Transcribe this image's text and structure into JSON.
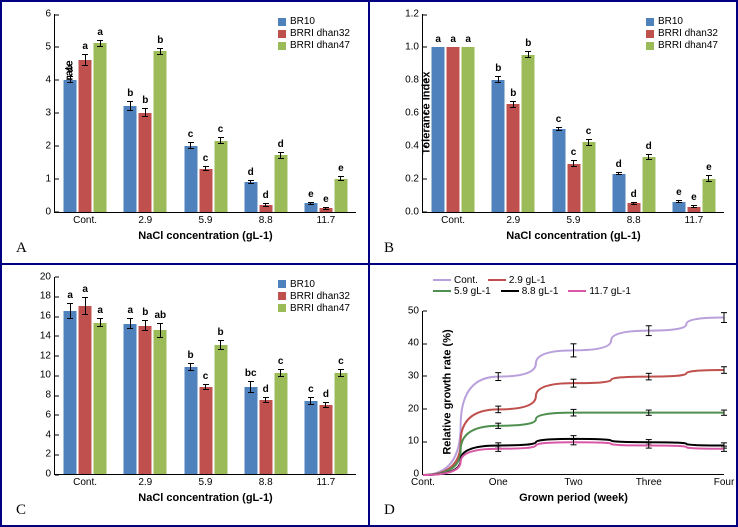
{
  "colors": {
    "BR10": "#4f81bd",
    "BRRI_dhan32": "#c0504d",
    "BRRI_dhan47": "#9bbb59",
    "axis": "#000000",
    "text": "#000000"
  },
  "line_colors": {
    "Cont": "#b9a0dc",
    "c29": "#c0504d",
    "c59": "#4f8f4f",
    "c88": "#000000",
    "c117": "#d858a6"
  },
  "series_labels": {
    "BR10": "BR10",
    "BRRI_dhan32": "BRRI dhan32",
    "BRRI_dhan47": "BRRI dhan47"
  },
  "x_categories": [
    "Cont.",
    "2.9",
    "5.9",
    "8.8",
    "11.7"
  ],
  "panelA": {
    "letter": "A",
    "ylabel": "Relative growth rate",
    "xlabel": "NaCl concentration (gL-1)",
    "ymin": 0.0,
    "ymax": 6.0,
    "ystep": 1.0,
    "data": {
      "BR10": [
        4.0,
        3.2,
        2.0,
        0.9,
        0.25
      ],
      "BRRI_dhan32": [
        4.6,
        3.0,
        1.3,
        0.2,
        0.1
      ],
      "BRRI_dhan47": [
        5.1,
        4.85,
        2.15,
        1.7,
        1.0
      ]
    },
    "err": {
      "BR10": [
        0.12,
        0.15,
        0.1,
        0.07,
        0.05
      ],
      "BRRI_dhan32": [
        0.18,
        0.13,
        0.07,
        0.05,
        0.04
      ],
      "BRRI_dhan47": [
        0.1,
        0.1,
        0.1,
        0.1,
        0.08
      ]
    },
    "sig": {
      "BR10": [
        "a",
        "b",
        "c",
        "d",
        "e"
      ],
      "BRRI_dhan32": [
        "a",
        "b",
        "c",
        "d",
        "e"
      ],
      "BRRI_dhan47": [
        "a",
        "b",
        "c",
        "d",
        "e"
      ]
    }
  },
  "panelB": {
    "letter": "B",
    "ylabel": "Tolerance Index",
    "xlabel": "NaCl concentration (gL-1)",
    "ymin": 0.0,
    "ymax": 1.2,
    "ystep": 0.2,
    "data": {
      "BR10": [
        1.0,
        0.8,
        0.5,
        0.23,
        0.06
      ],
      "BRRI_dhan32": [
        1.0,
        0.65,
        0.29,
        0.05,
        0.03
      ],
      "BRRI_dhan47": [
        1.0,
        0.95,
        0.42,
        0.33,
        0.2
      ]
    },
    "err": {
      "BR10": [
        0,
        0.02,
        0.01,
        0.01,
        0.01
      ],
      "BRRI_dhan32": [
        0,
        0.02,
        0.02,
        0.01,
        0.01
      ],
      "BRRI_dhan47": [
        0,
        0.02,
        0.02,
        0.02,
        0.02
      ]
    },
    "sig": {
      "BR10": [
        "a",
        "b",
        "c",
        "d",
        "e"
      ],
      "BRRI_dhan32": [
        "a",
        "b",
        "c",
        "d",
        "e"
      ],
      "BRRI_dhan47": [
        "a",
        "b",
        "c",
        "d",
        "e"
      ]
    }
  },
  "panelC": {
    "letter": "C",
    "ylabel": "Relative water content (%)",
    "xlabel": "NaCl concentration (gL-1)",
    "ymin": 0,
    "ymax": 20,
    "ystep": 2,
    "data": {
      "BR10": [
        16.5,
        15.2,
        10.8,
        8.8,
        7.4
      ],
      "BRRI_dhan32": [
        17.0,
        15.0,
        8.8,
        7.5,
        7.0
      ],
      "BRRI_dhan47": [
        15.3,
        14.5,
        13.0,
        10.2,
        10.2
      ]
    },
    "err": {
      "BR10": [
        0.8,
        0.6,
        0.4,
        0.6,
        0.4
      ],
      "BRRI_dhan32": [
        0.9,
        0.6,
        0.3,
        0.3,
        0.3
      ],
      "BRRI_dhan47": [
        0.5,
        0.8,
        0.5,
        0.4,
        0.4
      ]
    },
    "sig": {
      "BR10": [
        "a",
        "a",
        "b",
        "bc",
        "c"
      ],
      "BRRI_dhan32": [
        "a",
        "b",
        "c",
        "d",
        "d"
      ],
      "BRRI_dhan47": [
        "a",
        "ab",
        "b",
        "c",
        "c"
      ]
    }
  },
  "panelD": {
    "letter": "D",
    "ylabel": "Relative growth rate (%)",
    "xlabel": "Grown period (week)",
    "ymin": 0,
    "ymax": 50,
    "ystep": 10,
    "x_categories": [
      "Cont.",
      "One",
      "Two",
      "Three",
      "Four"
    ],
    "series": {
      "Cont": {
        "label": "Cont.",
        "values": [
          0,
          30,
          38,
          44,
          48
        ],
        "err": [
          0,
          1.2,
          2.0,
          1.5,
          1.5
        ]
      },
      "c29": {
        "label": "2.9 gL-1",
        "values": [
          0,
          20,
          28,
          30,
          32
        ],
        "err": [
          0,
          1.0,
          1.2,
          1.0,
          1.0
        ]
      },
      "c59": {
        "label": "5.9 gL-1",
        "values": [
          0,
          15,
          19,
          19,
          19
        ],
        "err": [
          0,
          0.8,
          1.0,
          0.8,
          0.8
        ]
      },
      "c88": {
        "label": "8.8 gL-1",
        "values": [
          0,
          9,
          11,
          10,
          9
        ],
        "err": [
          0,
          0.8,
          1.0,
          0.8,
          0.8
        ]
      },
      "c117": {
        "label": "11.7 gL-1",
        "values": [
          0,
          8,
          10,
          9,
          8
        ],
        "err": [
          0,
          0.8,
          0.8,
          0.8,
          0.8
        ]
      }
    }
  }
}
